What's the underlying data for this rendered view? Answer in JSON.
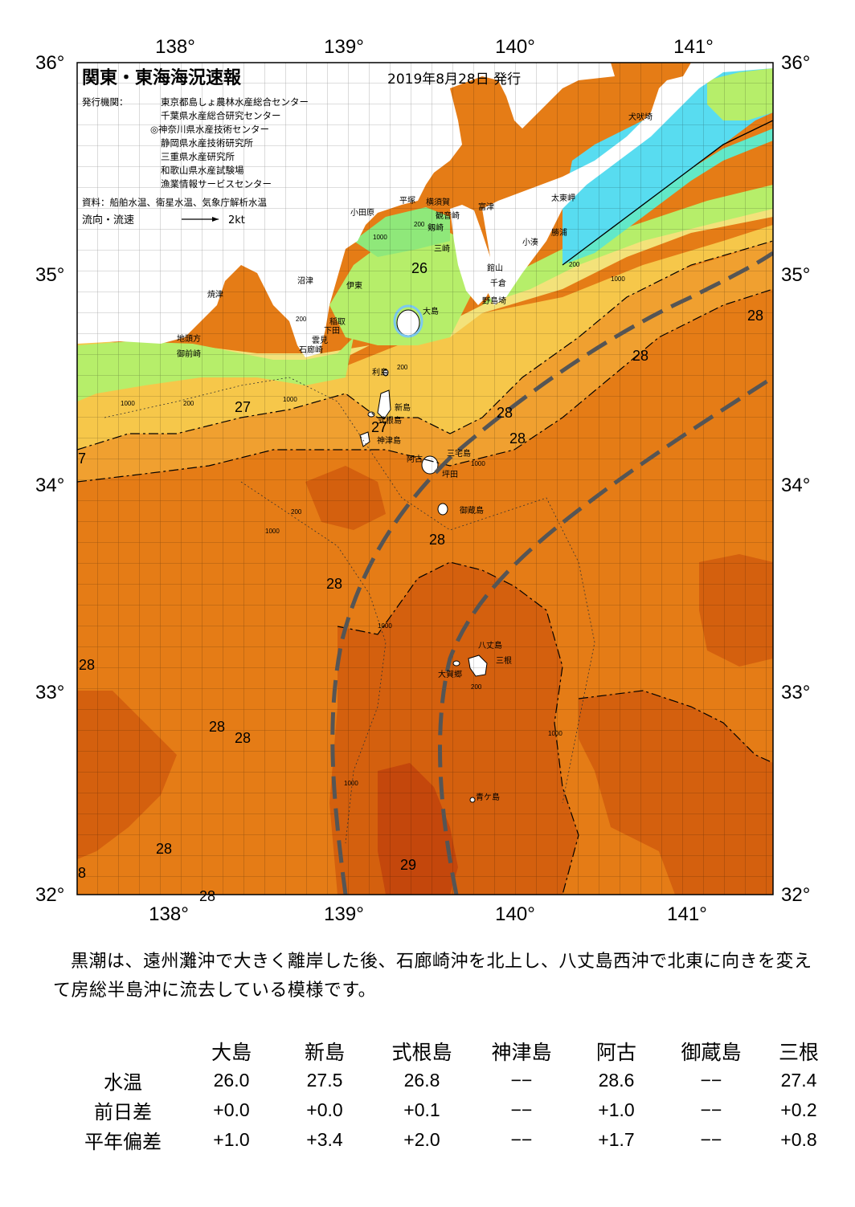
{
  "header": {
    "title": "関東・東海海況速報",
    "issue_date": "2019年8月28日 発行",
    "publisher_label": "発行機関：",
    "publishers": [
      "東京都島しょ農林水産総合センター",
      "千葉県水産総合研究センター",
      "◎神奈川県水産技術センター",
      "静岡県水産技術研究所",
      "三重県水産研究所",
      "和歌山県水産試験場",
      "漁業情報サービスセンター"
    ],
    "source": "資料：船舶水温、衛星水温、気象庁解析水温",
    "current_label": "流向・流速",
    "current_scale": "2kt"
  },
  "map": {
    "lon_ticks": [
      "138°",
      "139°",
      "140°",
      "141°"
    ],
    "lat_ticks": [
      "36°",
      "35°",
      "34°",
      "33°",
      "32°"
    ],
    "colors": {
      "warm_29": "#c4470c",
      "warm_285": "#d4600e",
      "warm_28": "#e57c16",
      "warm_275": "#f0a030",
      "mid_27": "#f6c74a",
      "mid_265": "#f3e27a",
      "cool_26": "#b6ee6a",
      "cool_25": "#8fe87a",
      "cold_24": "#62e8c8",
      "cold_23": "#58dcf0",
      "land": "#ffffff",
      "kuroshio_axis": "#555555"
    },
    "place_names": [
      "犬吠埼",
      "太東岬",
      "勝浦",
      "小湊",
      "富津",
      "館山",
      "千倉",
      "野島埼",
      "横須賀",
      "観音崎",
      "剱崎",
      "三崎",
      "平塚",
      "小田原",
      "沼津",
      "伊東",
      "大島",
      "焼津",
      "稲取",
      "下田",
      "雲見",
      "石廊崎",
      "地頭方",
      "御前崎",
      "利島",
      "新島",
      "式根島",
      "神津島",
      "三宅島",
      "阿古",
      "坪田",
      "御蔵島",
      "八丈島",
      "三根",
      "大賀郷",
      "青ケ島"
    ],
    "temperature_labels": [
      "26",
      "27",
      "27",
      "27",
      "28",
      "28",
      "28",
      "28",
      "28",
      "28",
      "28",
      "28",
      "28",
      "28",
      "28",
      "28",
      "29",
      "28",
      "8",
      "7"
    ],
    "depth_labels": [
      "200",
      "1000",
      "200",
      "1000",
      "200",
      "1000",
      "200",
      "1000",
      "200",
      "1000",
      "1000",
      "1000",
      "200",
      "1000",
      "1000",
      "200"
    ]
  },
  "summary": "黒潮は、遠州灘沖で大きく離岸した後、石廊崎沖を北上し、八丈島西沖で北東に向きを変えて房総半島沖に流去している模様です。",
  "obs_table": {
    "stations": [
      "大島",
      "新島",
      "式根島",
      "神津島",
      "阿古",
      "御蔵島",
      "三根"
    ],
    "rows": [
      {
        "label": "水温",
        "values": [
          "26.0",
          "27.5",
          "26.8",
          "−−",
          "28.6",
          "−−",
          "27.4"
        ]
      },
      {
        "label": "前日差",
        "values": [
          "+0.0",
          "+0.0",
          "+0.1",
          "−−",
          "+1.0",
          "−−",
          "+0.2"
        ]
      },
      {
        "label": "平年偏差",
        "values": [
          "+1.0",
          "+3.4",
          "+2.0",
          "−−",
          "+1.7",
          "−−",
          "+0.8"
        ]
      }
    ]
  }
}
